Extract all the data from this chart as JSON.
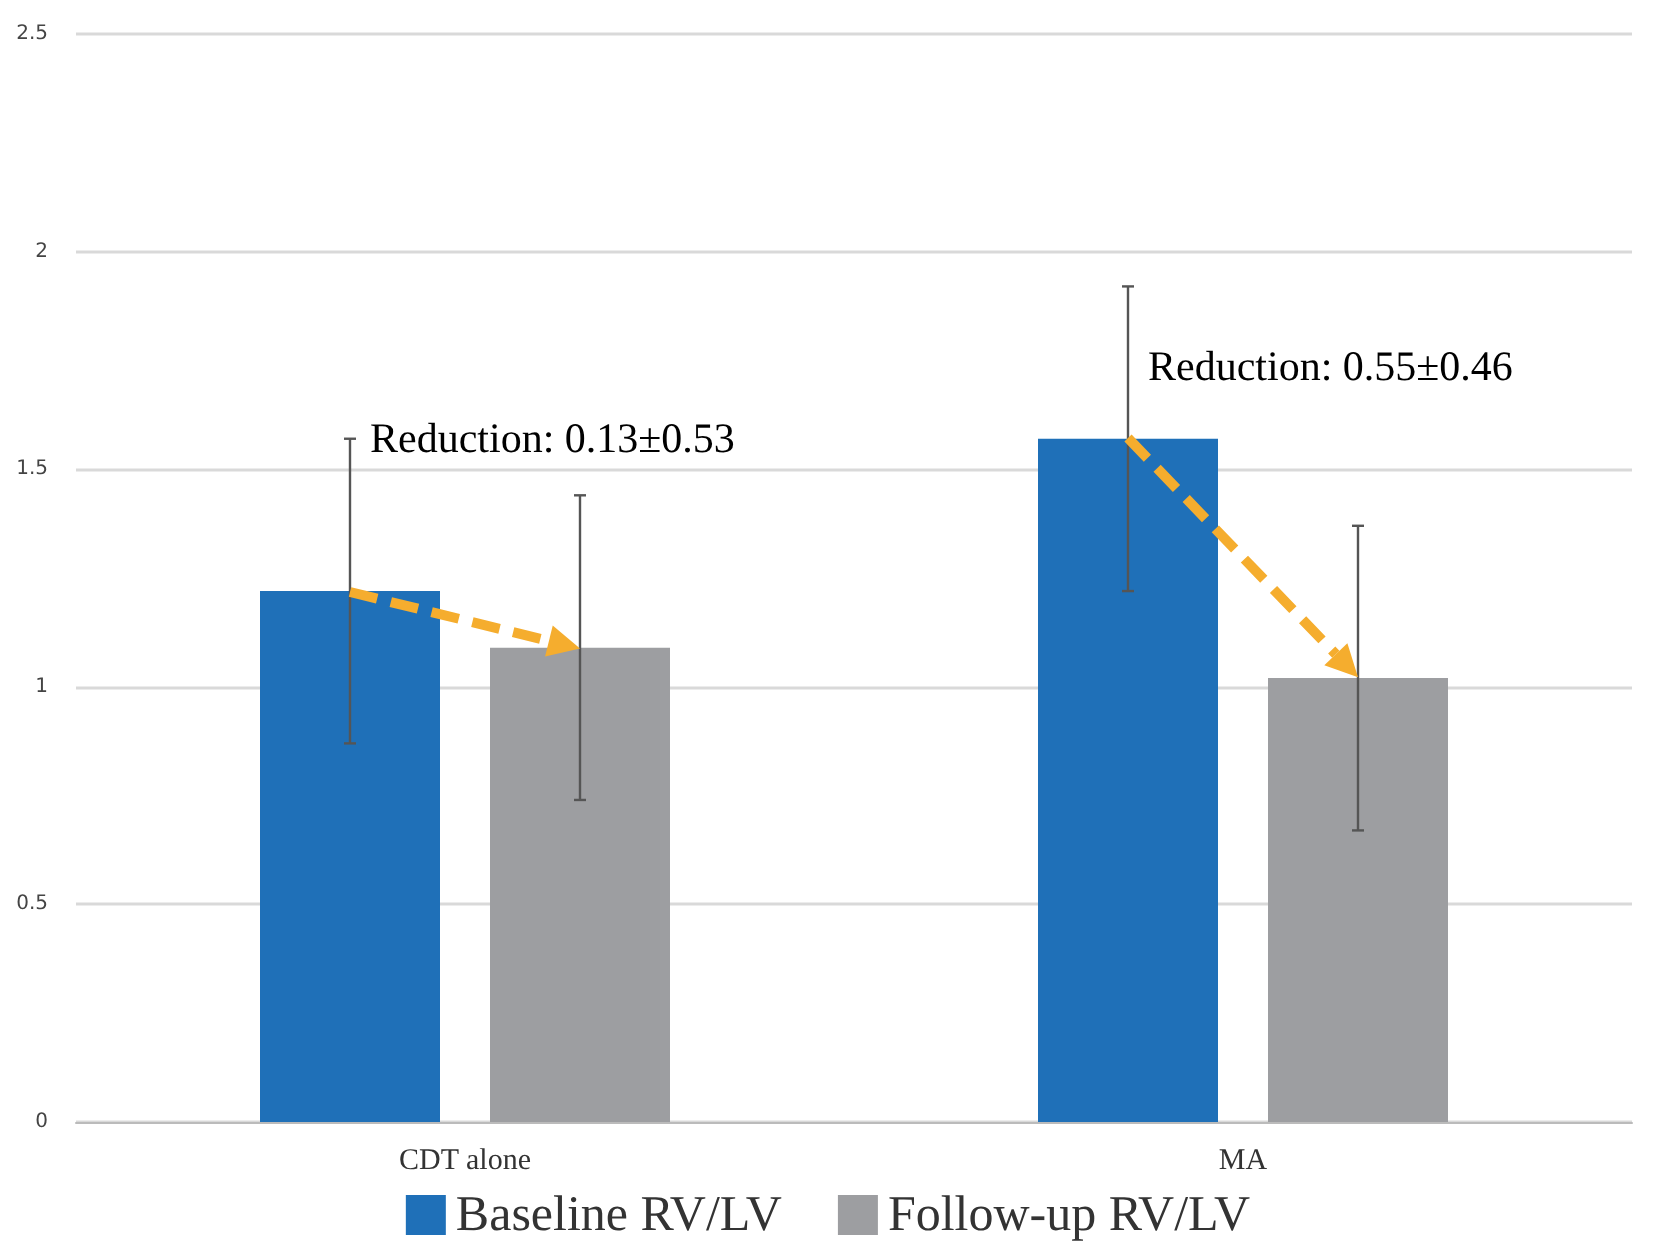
{
  "chart_data": {
    "type": "bar",
    "categories": [
      "CDT alone",
      "MA"
    ],
    "series": [
      {
        "name": "Baseline RV/LV",
        "color": "#1f70b8",
        "values": [
          1.22,
          1.57
        ],
        "errors": [
          0.35,
          0.35
        ]
      },
      {
        "name": "Follow-up RV/LV",
        "color": "#9d9ea1",
        "values": [
          1.09,
          1.02
        ],
        "errors": [
          0.35,
          0.35
        ]
      }
    ],
    "ylim": [
      0,
      2.5
    ],
    "yticks": [
      0,
      0.5,
      1,
      1.5,
      2,
      2.5
    ],
    "grid": "y",
    "legend": "bottom",
    "annotations": [
      "Reduction: 0.13±0.53",
      "Reduction: 0.55±0.46"
    ]
  }
}
